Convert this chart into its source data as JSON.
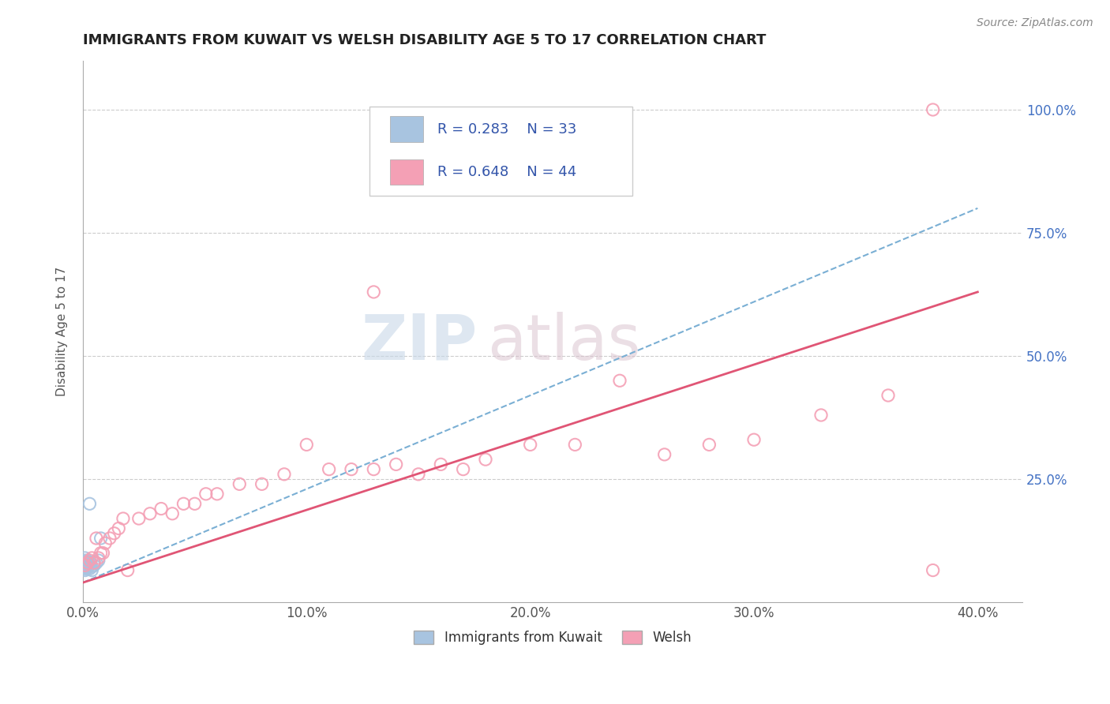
{
  "title": "IMMIGRANTS FROM KUWAIT VS WELSH DISABILITY AGE 5 TO 17 CORRELATION CHART",
  "source": "Source: ZipAtlas.com",
  "ylabel": "Disability Age 5 to 17",
  "xlim": [
    0.0,
    0.42
  ],
  "ylim": [
    0.0,
    1.1
  ],
  "xtick_labels": [
    "0.0%",
    "10.0%",
    "20.0%",
    "30.0%",
    "40.0%"
  ],
  "xtick_vals": [
    0.0,
    0.1,
    0.2,
    0.3,
    0.4
  ],
  "ytick_labels": [
    "25.0%",
    "50.0%",
    "75.0%",
    "100.0%"
  ],
  "ytick_vals": [
    0.25,
    0.5,
    0.75,
    1.0
  ],
  "legend_label1": "Immigrants from Kuwait",
  "legend_label2": "Welsh",
  "R1": "0.283",
  "N1": "33",
  "R2": "0.648",
  "N2": "44",
  "color1": "#a8c4e0",
  "color2": "#f4a0b5",
  "line_color1": "#7aafd4",
  "line_color2": "#e05575",
  "kuwait_x": [
    0.0005,
    0.0005,
    0.0007,
    0.0008,
    0.0009,
    0.001,
    0.001,
    0.001,
    0.0012,
    0.0013,
    0.0013,
    0.0014,
    0.0014,
    0.0015,
    0.0015,
    0.0016,
    0.0017,
    0.0018,
    0.002,
    0.002,
    0.0022,
    0.0023,
    0.0025,
    0.003,
    0.003,
    0.0035,
    0.004,
    0.004,
    0.005,
    0.005,
    0.006,
    0.007,
    0.008
  ],
  "kuwait_y": [
    0.075,
    0.082,
    0.078,
    0.085,
    0.09,
    0.065,
    0.07,
    0.075,
    0.072,
    0.068,
    0.073,
    0.078,
    0.082,
    0.07,
    0.075,
    0.08,
    0.076,
    0.083,
    0.07,
    0.075,
    0.078,
    0.082,
    0.072,
    0.075,
    0.068,
    0.08,
    0.072,
    0.065,
    0.075,
    0.082,
    0.08,
    0.085,
    0.13
  ],
  "welsh_x": [
    0.001,
    0.002,
    0.003,
    0.004,
    0.005,
    0.006,
    0.007,
    0.008,
    0.009,
    0.01,
    0.012,
    0.014,
    0.016,
    0.018,
    0.02,
    0.025,
    0.03,
    0.035,
    0.04,
    0.045,
    0.05,
    0.055,
    0.06,
    0.07,
    0.08,
    0.09,
    0.1,
    0.11,
    0.12,
    0.13,
    0.14,
    0.15,
    0.16,
    0.17,
    0.18,
    0.2,
    0.22,
    0.24,
    0.26,
    0.28,
    0.3,
    0.33,
    0.36,
    0.38
  ],
  "welsh_y": [
    0.075,
    0.08,
    0.085,
    0.09,
    0.08,
    0.13,
    0.09,
    0.1,
    0.1,
    0.12,
    0.13,
    0.14,
    0.15,
    0.17,
    0.065,
    0.17,
    0.18,
    0.19,
    0.18,
    0.2,
    0.2,
    0.22,
    0.22,
    0.24,
    0.24,
    0.26,
    0.32,
    0.27,
    0.27,
    0.27,
    0.28,
    0.26,
    0.28,
    0.27,
    0.29,
    0.32,
    0.32,
    0.45,
    0.3,
    0.32,
    0.33,
    0.38,
    0.42,
    0.065
  ]
}
